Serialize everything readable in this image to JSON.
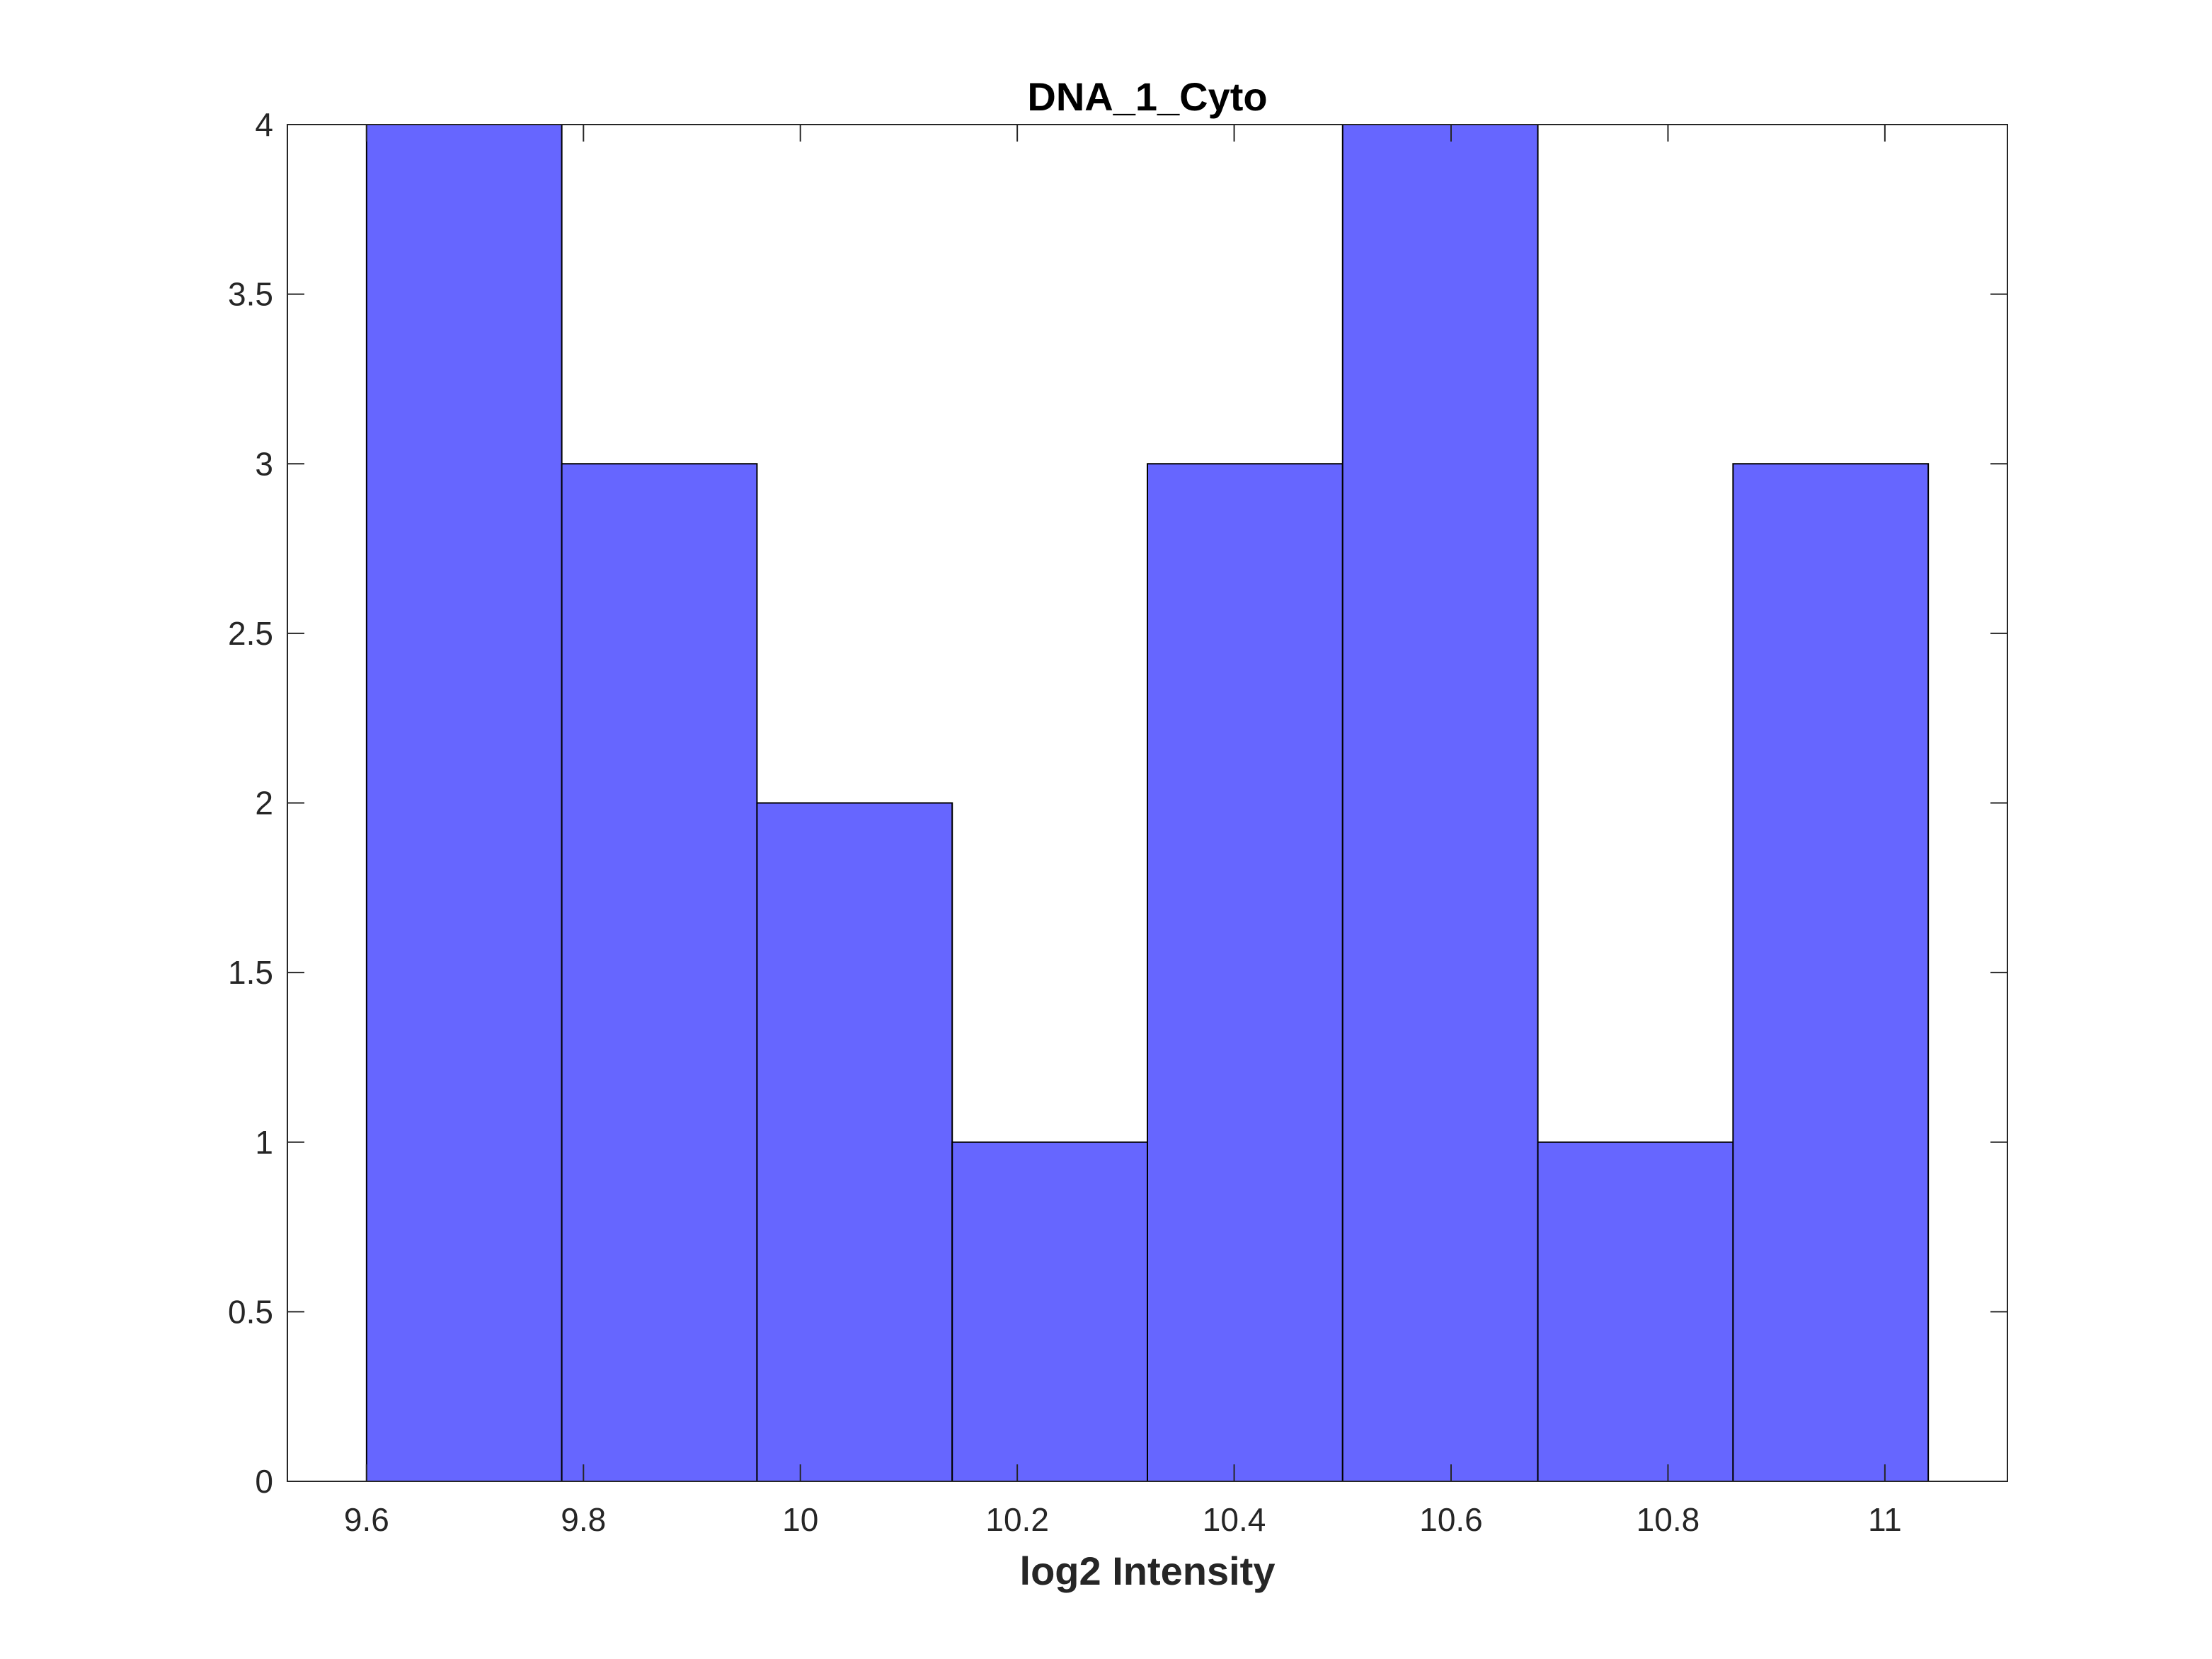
{
  "chart_data": {
    "type": "bar",
    "title": "DNA_1_Cyto",
    "xlabel": "log2 Intensity",
    "ylabel": "",
    "bin_edges": [
      9.6,
      9.78,
      9.96,
      10.14,
      10.32,
      10.5,
      10.68,
      10.86,
      11.04
    ],
    "values": [
      4,
      3,
      2,
      1,
      3,
      4,
      1,
      3
    ],
    "xlim": [
      9.527,
      11.113
    ],
    "ylim": [
      0,
      4
    ],
    "x_ticks": [
      9.6,
      9.8,
      10,
      10.2,
      10.4,
      10.6,
      10.8,
      11
    ],
    "x_tick_labels": [
      "9.6",
      "9.8",
      "10",
      "10.2",
      "10.4",
      "10.6",
      "10.8",
      "11"
    ],
    "y_ticks": [
      0,
      0.5,
      1,
      1.5,
      2,
      2.5,
      3,
      3.5,
      4
    ],
    "y_tick_labels": [
      "0",
      "0.5",
      "1",
      "1.5",
      "2",
      "2.5",
      "3",
      "3.5",
      "4"
    ],
    "grid": false,
    "bar_color": "#6666ff",
    "edge_color": "#000000"
  }
}
